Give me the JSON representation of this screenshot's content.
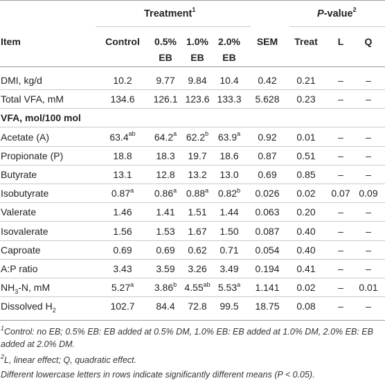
{
  "header": {
    "treatment": "Treatment",
    "treatment_sup": "1",
    "pvalue_p": "P",
    "pvalue_rest": "-value",
    "pvalue_sup": "2",
    "item": "Item",
    "cols": [
      "Control",
      "0.5%",
      "1.0%",
      "2.0%",
      "SEM",
      "Treat",
      "L",
      "Q"
    ],
    "cols_line2": [
      "",
      "EB",
      "EB",
      "EB",
      "",
      "",
      "",
      ""
    ]
  },
  "rows": [
    {
      "label": "DMI, kg/d",
      "vals": [
        [
          "10.2",
          ""
        ],
        [
          "9.77",
          ""
        ],
        [
          "9.84",
          ""
        ],
        [
          "10.4",
          ""
        ],
        [
          "0.42",
          ""
        ],
        [
          "0.21",
          ""
        ],
        [
          "–",
          ""
        ],
        [
          "–",
          ""
        ]
      ]
    },
    {
      "label": "Total VFA, mM",
      "vals": [
        [
          "134.6",
          ""
        ],
        [
          "126.1",
          ""
        ],
        [
          "123.6",
          ""
        ],
        [
          "133.3",
          ""
        ],
        [
          "5.628",
          ""
        ],
        [
          "0.23",
          ""
        ],
        [
          "–",
          ""
        ],
        [
          "–",
          ""
        ]
      ]
    },
    {
      "label": "VFA, mol/100 mol",
      "section": true
    },
    {
      "label": "Acetate (A)",
      "vals": [
        [
          "63.4",
          "ab"
        ],
        [
          "64.2",
          "a"
        ],
        [
          "62.2",
          "b"
        ],
        [
          "63.9",
          "a"
        ],
        [
          "0.92",
          ""
        ],
        [
          "0.01",
          ""
        ],
        [
          "–",
          ""
        ],
        [
          "–",
          ""
        ]
      ]
    },
    {
      "label": "Propionate (P)",
      "vals": [
        [
          "18.8",
          ""
        ],
        [
          "18.3",
          ""
        ],
        [
          "19.7",
          ""
        ],
        [
          "18.6",
          ""
        ],
        [
          "0.87",
          ""
        ],
        [
          "0.51",
          ""
        ],
        [
          "–",
          ""
        ],
        [
          "–",
          ""
        ]
      ]
    },
    {
      "label": "Butyrate",
      "vals": [
        [
          "13.1",
          ""
        ],
        [
          "12.8",
          ""
        ],
        [
          "13.2",
          ""
        ],
        [
          "13.0",
          ""
        ],
        [
          "0.69",
          ""
        ],
        [
          "0.85",
          ""
        ],
        [
          "–",
          ""
        ],
        [
          "–",
          ""
        ]
      ]
    },
    {
      "label": "Isobutyrate",
      "vals": [
        [
          "0.87",
          "a"
        ],
        [
          "0.86",
          "a"
        ],
        [
          "0.88",
          "a"
        ],
        [
          "0.82",
          "b"
        ],
        [
          "0.026",
          ""
        ],
        [
          "0.02",
          ""
        ],
        [
          "0.07",
          ""
        ],
        [
          "0.09",
          ""
        ]
      ]
    },
    {
      "label": "Valerate",
      "vals": [
        [
          "1.46",
          ""
        ],
        [
          "1.41",
          ""
        ],
        [
          "1.51",
          ""
        ],
        [
          "1.44",
          ""
        ],
        [
          "0.063",
          ""
        ],
        [
          "0.20",
          ""
        ],
        [
          "–",
          ""
        ],
        [
          "–",
          ""
        ]
      ]
    },
    {
      "label": "Isovalerate",
      "vals": [
        [
          "1.56",
          ""
        ],
        [
          "1.53",
          ""
        ],
        [
          "1.67",
          ""
        ],
        [
          "1.50",
          ""
        ],
        [
          "0.087",
          ""
        ],
        [
          "0.40",
          ""
        ],
        [
          "–",
          ""
        ],
        [
          "–",
          ""
        ]
      ]
    },
    {
      "label": "Caproate",
      "vals": [
        [
          "0.69",
          ""
        ],
        [
          "0.69",
          ""
        ],
        [
          "0.62",
          ""
        ],
        [
          "0.71",
          ""
        ],
        [
          "0.054",
          ""
        ],
        [
          "0.40",
          ""
        ],
        [
          "–",
          ""
        ],
        [
          "–",
          ""
        ]
      ]
    },
    {
      "label": "A:P ratio",
      "vals": [
        [
          "3.43",
          ""
        ],
        [
          "3.59",
          ""
        ],
        [
          "3.26",
          ""
        ],
        [
          "3.49",
          ""
        ],
        [
          "0.194",
          ""
        ],
        [
          "0.41",
          ""
        ],
        [
          "–",
          ""
        ],
        [
          "–",
          ""
        ]
      ]
    },
    {
      "label": "NH",
      "label_sub": "3",
      "label_rest": "-N, mM",
      "vals": [
        [
          "5.27",
          "a"
        ],
        [
          "3.86",
          "b"
        ],
        [
          "4.55",
          "ab"
        ],
        [
          "5.53",
          "a"
        ],
        [
          "1.141",
          ""
        ],
        [
          "0.02",
          ""
        ],
        [
          "–",
          ""
        ],
        [
          "0.01",
          ""
        ]
      ]
    },
    {
      "label": "Dissolved H",
      "label_sub": "2",
      "label_rest": "",
      "vals": [
        [
          "102.7",
          ""
        ],
        [
          "84.4",
          ""
        ],
        [
          "72.8",
          ""
        ],
        [
          "99.5",
          ""
        ],
        [
          "18.75",
          ""
        ],
        [
          "0.08",
          ""
        ],
        [
          "–",
          ""
        ],
        [
          "–",
          ""
        ]
      ]
    }
  ],
  "footnotes": {
    "f1_sup": "1",
    "f1": "Control: no EB; 0.5% EB: EB added at 0.5% DM, 1.0% EB: EB added at 1.0% DM, 2.0% EB: EB added at 2.0% DM.",
    "f2_sup": "2",
    "f2": "L, linear effect; Q, quadratic effect.",
    "f3_a": "Different lowercase letters in rows indicate significantly different means (",
    "f3_p": "P",
    "f3_b": " < 0.05)."
  }
}
